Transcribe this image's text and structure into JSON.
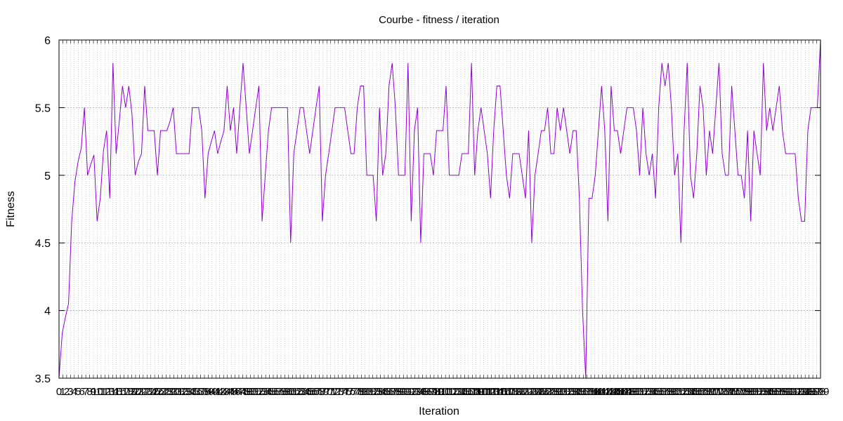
{
  "chart_data": {
    "type": "line",
    "title": "Courbe - fitness / iteration",
    "xlabel": "Iteration",
    "ylabel": "Fitness",
    "ylim": [
      3.5,
      6
    ],
    "yticks": [
      "3.5",
      "4",
      "4.5",
      "5",
      "5.5",
      "6"
    ],
    "xlim": [
      0,
      199
    ],
    "grid": true,
    "line_color": "#9400d3",
    "series": [
      {
        "values": [
          3.5,
          3.83,
          3.95,
          4.05,
          4.66,
          4.95,
          5.1,
          5.2,
          5.5,
          5.0,
          5.08,
          5.15,
          4.66,
          4.83,
          5.18,
          5.33,
          4.83,
          5.83,
          5.16,
          5.4,
          5.66,
          5.5,
          5.66,
          5.45,
          5.0,
          5.1,
          5.16,
          5.66,
          5.33,
          5.33,
          5.33,
          5.0,
          5.33,
          5.33,
          5.33,
          5.4,
          5.5,
          5.16,
          5.16,
          5.16,
          5.16,
          5.16,
          5.5,
          5.5,
          5.5,
          5.33,
          4.83,
          5.16,
          5.25,
          5.33,
          5.16,
          5.25,
          5.33,
          5.66,
          5.33,
          5.5,
          5.16,
          5.5,
          5.83,
          5.5,
          5.16,
          5.33,
          5.5,
          5.66,
          4.66,
          5.0,
          5.33,
          5.5,
          5.5,
          5.5,
          5.5,
          5.5,
          5.5,
          4.5,
          5.16,
          5.33,
          5.5,
          5.5,
          5.33,
          5.16,
          5.33,
          5.5,
          5.66,
          4.66,
          5.0,
          5.16,
          5.33,
          5.5,
          5.5,
          5.5,
          5.5,
          5.33,
          5.16,
          5.16,
          5.5,
          5.66,
          5.66,
          5.0,
          5.0,
          5.0,
          4.66,
          5.5,
          5.0,
          5.16,
          5.66,
          5.83,
          5.5,
          5.0,
          5.0,
          5.0,
          5.83,
          4.66,
          5.33,
          5.5,
          4.5,
          5.16,
          5.16,
          5.16,
          5.0,
          5.33,
          5.33,
          5.33,
          5.66,
          5.0,
          5.0,
          5.0,
          5.0,
          5.16,
          5.16,
          5.16,
          5.83,
          5.0,
          5.33,
          5.5,
          5.33,
          5.16,
          4.83,
          5.33,
          5.66,
          5.66,
          5.33,
          5.0,
          4.83,
          5.16,
          5.16,
          5.16,
          5.0,
          4.83,
          5.33,
          4.5,
          5.0,
          5.16,
          5.33,
          5.33,
          5.5,
          5.16,
          5.16,
          5.5,
          5.33,
          5.5,
          5.33,
          5.16,
          5.33,
          5.33,
          4.83,
          4.0,
          3.5,
          4.83,
          4.83,
          5.0,
          5.33,
          5.66,
          5.33,
          4.66,
          5.66,
          5.33,
          5.33,
          5.16,
          5.33,
          5.5,
          5.5,
          5.5,
          5.33,
          5.0,
          5.5,
          5.16,
          5.0,
          5.16,
          4.83,
          5.5,
          5.83,
          5.66,
          5.83,
          5.5,
          5.0,
          5.16,
          4.5,
          5.33,
          5.83,
          5.0,
          4.83,
          5.16,
          5.66,
          5.5,
          5.0,
          5.33,
          5.16,
          5.5,
          5.83,
          5.16,
          5.0,
          5.0,
          5.66,
          5.33,
          5.0,
          5.0,
          4.83,
          5.33,
          4.66,
          5.33,
          5.16,
          5.0,
          5.83,
          5.33,
          5.5,
          5.33,
          5.5,
          5.66,
          5.33,
          5.16,
          5.16,
          5.16,
          5.16,
          4.83,
          4.66,
          4.66,
          5.33,
          5.5,
          5.5,
          5.5,
          6.0
        ]
      }
    ]
  }
}
